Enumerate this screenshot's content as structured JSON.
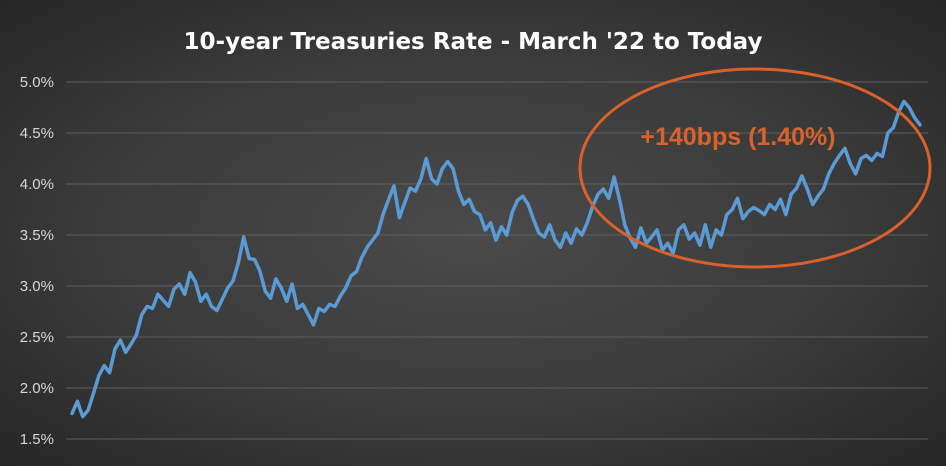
{
  "chart_data": {
    "type": "line",
    "title": "10-year Treasuries Rate - March '22 to Today",
    "xlabel": "",
    "ylabel": "",
    "ylim": [
      1.5,
      5.0
    ],
    "yticks": [
      "1.5%",
      "2.0%",
      "2.5%",
      "3.0%",
      "3.5%",
      "4.0%",
      "4.5%",
      "5.0%"
    ],
    "grid": true,
    "legend": "none",
    "line_color": "#5b9bd5",
    "annotation": {
      "text": "+140bps (1.40%)",
      "color": "#d9622b",
      "shape": "ellipse"
    },
    "series": [
      {
        "values": [
          1.75,
          1.87,
          1.72,
          1.78,
          1.95,
          2.12,
          2.22,
          2.15,
          2.38,
          2.47,
          2.35,
          2.43,
          2.52,
          2.72,
          2.8,
          2.78,
          2.92,
          2.86,
          2.8,
          2.97,
          3.02,
          2.92,
          3.13,
          3.04,
          2.85,
          2.92,
          2.8,
          2.76,
          2.87,
          2.98,
          3.05,
          3.23,
          3.48,
          3.27,
          3.26,
          3.15,
          2.95,
          2.88,
          3.07,
          2.98,
          2.85,
          3.02,
          2.78,
          2.82,
          2.72,
          2.62,
          2.78,
          2.75,
          2.82,
          2.8,
          2.9,
          2.98,
          3.1,
          3.14,
          3.28,
          3.38,
          3.45,
          3.52,
          3.71,
          3.85,
          3.98,
          3.67,
          3.82,
          3.96,
          3.93,
          4.05,
          4.25,
          4.05,
          4.0,
          4.15,
          4.22,
          4.15,
          3.93,
          3.8,
          3.85,
          3.73,
          3.7,
          3.55,
          3.62,
          3.45,
          3.58,
          3.5,
          3.72,
          3.84,
          3.88,
          3.8,
          3.65,
          3.52,
          3.48,
          3.6,
          3.45,
          3.38,
          3.52,
          3.42,
          3.56,
          3.5,
          3.62,
          3.78,
          3.9,
          3.95,
          3.86,
          4.07,
          3.85,
          3.6,
          3.47,
          3.38,
          3.57,
          3.42,
          3.48,
          3.55,
          3.35,
          3.42,
          3.32,
          3.55,
          3.6,
          3.46,
          3.52,
          3.4,
          3.6,
          3.38,
          3.55,
          3.5,
          3.7,
          3.75,
          3.86,
          3.66,
          3.73,
          3.77,
          3.74,
          3.7,
          3.8,
          3.75,
          3.85,
          3.7,
          3.9,
          3.96,
          4.08,
          3.95,
          3.8,
          3.88,
          3.95,
          4.1,
          4.2,
          4.28,
          4.35,
          4.2,
          4.1,
          4.25,
          4.28,
          4.23,
          4.3,
          4.27,
          4.5,
          4.55,
          4.7,
          4.81,
          4.75,
          4.65,
          4.58
        ]
      }
    ]
  }
}
